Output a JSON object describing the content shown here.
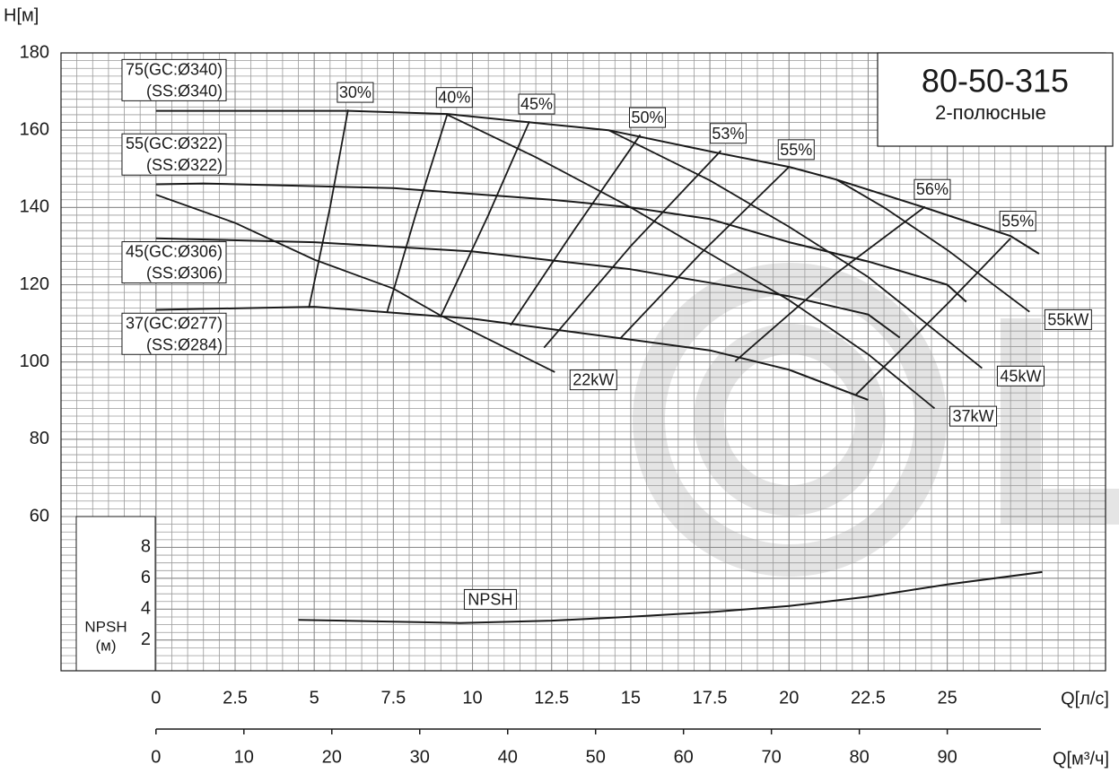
{
  "chart_data": [
    {
      "type": "line",
      "title": "80-50-315",
      "subtitle": "2-полюсные",
      "y_label": "H[м]",
      "x_label": "Q[л/с]",
      "x2_label": "Q[м³/ч]",
      "xlim": [
        -3,
        30
      ],
      "xticks": [
        0,
        2.5,
        5,
        7.5,
        10,
        12.5,
        15,
        17.5,
        20,
        22.5,
        25
      ],
      "x2lim": [
        -10.8,
        108
      ],
      "x2ticks": [
        0,
        10,
        20,
        30,
        40,
        50,
        60,
        70,
        80,
        90
      ],
      "ylim": [
        60,
        180
      ],
      "yticks": [
        60,
        80,
        100,
        120,
        140,
        160,
        180
      ],
      "grid": true,
      "color": "#1a1a1a",
      "series": [
        {
          "name": "75(GC:Ø340)",
          "subname": "(SS:Ø340)",
          "x": [
            0,
            6.1,
            9.2,
            14.3,
            17.7,
            20,
            21.5,
            24.2,
            27,
            27.9
          ],
          "values": [
            165,
            165,
            164.2,
            160,
            154.2,
            150.5,
            147.2,
            140.2,
            132.6,
            128
          ]
        },
        {
          "name": "55(GC:Ø322)",
          "subname": "(SS:Ø322)",
          "x": [
            0,
            1.5,
            7.5,
            12.5,
            15,
            17.5,
            20,
            22.5,
            25,
            25.6
          ],
          "values": [
            146,
            146.2,
            145,
            142,
            140,
            137,
            131,
            126,
            120,
            115.6
          ]
        },
        {
          "name": "45(GC:Ø306)",
          "subname": "(SS:Ø306)",
          "x": [
            0,
            5,
            10,
            15,
            17.5,
            20,
            22.5,
            23.5
          ],
          "values": [
            132,
            131,
            128.6,
            124,
            120.5,
            117,
            112.3,
            106.3
          ]
        },
        {
          "name": "37(GC:Ø277)",
          "subname": "(SS:Ø284)",
          "x": [
            0,
            5,
            10,
            15,
            17.5,
            20,
            22.5
          ],
          "values": [
            113.5,
            114.3,
            111.2,
            105.8,
            103,
            98,
            90.2
          ]
        }
      ],
      "power_lines": [
        {
          "name": "22kW",
          "x": [
            0,
            2.5,
            5,
            7.5,
            9,
            12.6
          ],
          "values": [
            143.3,
            136,
            126.5,
            119,
            112,
            97.4
          ]
        },
        {
          "name": "37kW",
          "x": [
            9.2,
            12,
            15,
            17.5,
            20,
            22.5,
            24.6
          ],
          "values": [
            164,
            153,
            140,
            128,
            116,
            102,
            88
          ]
        },
        {
          "name": "45kW",
          "x": [
            14.3,
            17.5,
            20,
            22.5,
            26.1
          ],
          "values": [
            160,
            147,
            135,
            122,
            98.4
          ]
        },
        {
          "name": "55kW",
          "x": [
            21.5,
            23,
            25,
            27.6
          ],
          "values": [
            147.2,
            140,
            129,
            113
          ]
        }
      ],
      "efficiency_lines": [
        {
          "name": "30%",
          "x": [
            6.07,
            5.5,
            4.83
          ],
          "values": [
            165.3,
            140,
            114
          ]
        },
        {
          "name": "40%",
          "x": [
            9.2,
            8.2,
            7.3
          ],
          "values": [
            164,
            138,
            112.8
          ]
        },
        {
          "name": "45%",
          "x": [
            11.8,
            10.5,
            9.0
          ],
          "values": [
            162.3,
            138,
            111.9
          ]
        },
        {
          "name": "50%",
          "x": [
            15.3,
            13.2,
            11.2
          ],
          "values": [
            158.8,
            134,
            109.5
          ]
        },
        {
          "name": "53%",
          "x": [
            17.85,
            15,
            12.26
          ],
          "values": [
            154.7,
            130,
            103.7
          ]
        },
        {
          "name": "55%",
          "x": [
            20,
            17.2,
            14.66
          ],
          "values": [
            150.5,
            128,
            106
          ]
        },
        {
          "name": "56%",
          "x": [
            24.3,
            21.5,
            18.3
          ],
          "values": [
            140.2,
            123,
            100.2
          ]
        },
        {
          "name": "55%",
          "x": [
            27,
            25,
            22.1
          ],
          "values": [
            132,
            115,
            91.4
          ]
        }
      ]
    },
    {
      "type": "line",
      "y_label": "NPSH",
      "y_unit": "(м)",
      "ylim": [
        0,
        10
      ],
      "yticks": [
        2,
        4,
        6,
        8
      ],
      "color": "#1a1a1a",
      "series": [
        {
          "name": "NPSH",
          "x": [
            4.5,
            9.6,
            12.5,
            15,
            17.5,
            20,
            22.5,
            25,
            28
          ],
          "values": [
            3.3,
            3.1,
            3.25,
            3.5,
            3.8,
            4.2,
            4.8,
            5.6,
            6.4
          ]
        }
      ]
    }
  ]
}
